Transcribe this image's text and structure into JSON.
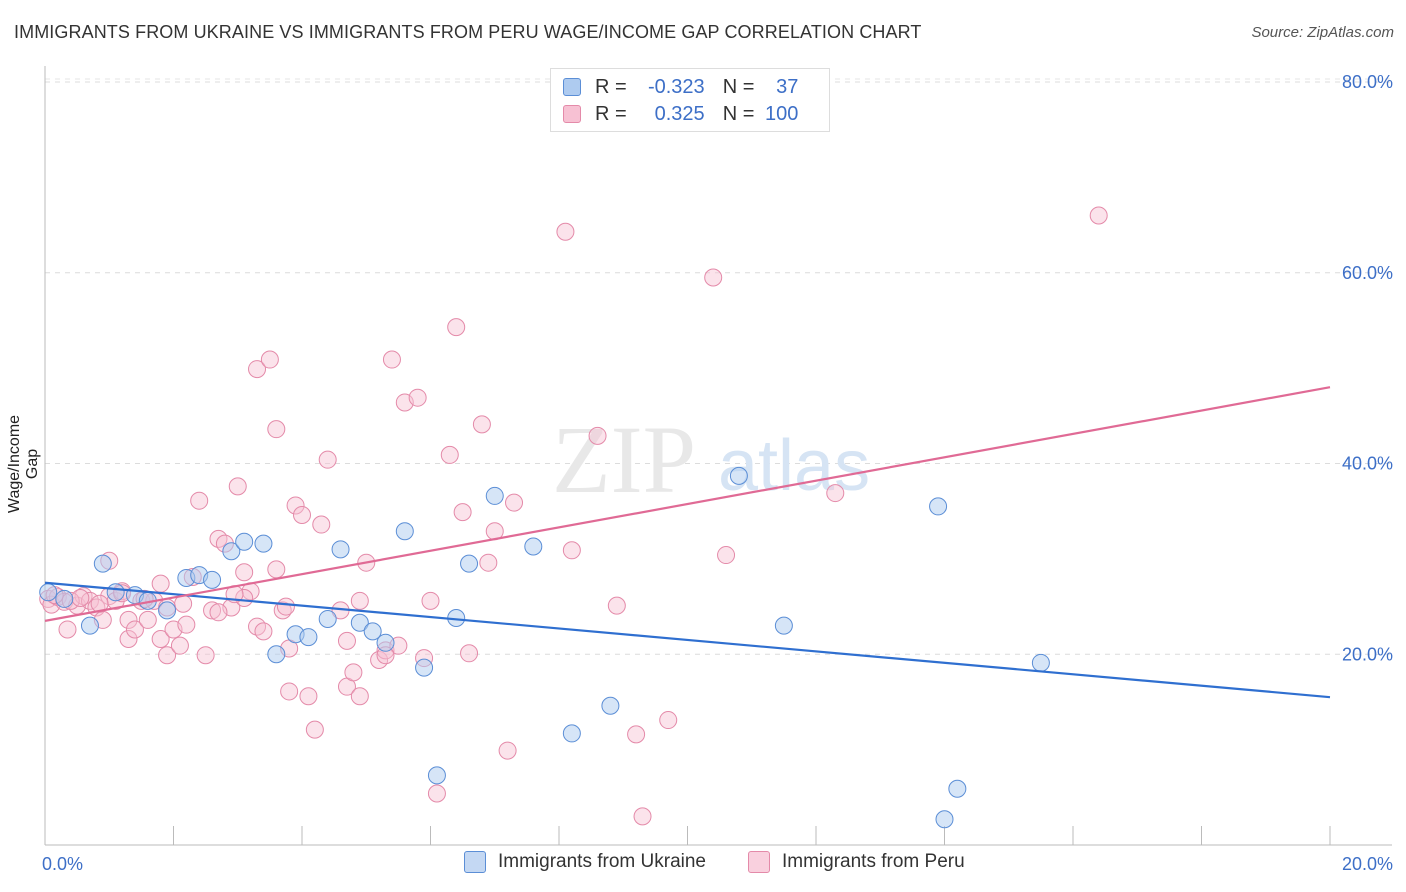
{
  "title": "IMMIGRANTS FROM UKRAINE VS IMMIGRANTS FROM PERU WAGE/INCOME GAP CORRELATION CHART",
  "source": "Source: ZipAtlas.com",
  "watermark": {
    "zip": "ZIP",
    "atlas": "atlas"
  },
  "legend": {
    "r_label": "R =",
    "n_label": "N =",
    "ukraine": {
      "r": "-0.323",
      "n": "37"
    },
    "peru": {
      "r": "0.325",
      "n": "100"
    }
  },
  "colors": {
    "ukraine_fill": "#aecbf0",
    "ukraine_stroke": "#5b8ed6",
    "ukraine_line": "#2f6fd0",
    "peru_fill": "#f7c1d3",
    "peru_stroke": "#e48aa9",
    "peru_line": "#e06a95",
    "tick_label": "#3d6fc7"
  },
  "chart_data": {
    "type": "scatter",
    "title": "IMMIGRANTS FROM UKRAINE VS IMMIGRANTS FROM PERU WAGE/INCOME GAP CORRELATION CHART",
    "xlabel": "",
    "ylabel": "Wage/Income Gap",
    "xlim": [
      0,
      20
    ],
    "ylim": [
      0,
      80
    ],
    "x_tick_labels": [
      "0.0%",
      "20.0%"
    ],
    "y_ticks": [
      20,
      40,
      60,
      80
    ],
    "y_tick_labels": [
      "20.0%",
      "40.0%",
      "60.0%",
      "80.0%"
    ],
    "grid": true,
    "series": [
      {
        "name": "Immigrants from Ukraine",
        "points": [
          [
            0.05,
            26.5
          ],
          [
            0.3,
            25.8
          ],
          [
            0.7,
            23.0
          ],
          [
            0.9,
            29.5
          ],
          [
            1.1,
            26.5
          ],
          [
            1.4,
            26.2
          ],
          [
            1.6,
            25.6
          ],
          [
            1.9,
            24.6
          ],
          [
            2.2,
            28.0
          ],
          [
            2.4,
            28.3
          ],
          [
            2.6,
            27.8
          ],
          [
            2.9,
            30.8
          ],
          [
            3.1,
            31.8
          ],
          [
            3.4,
            31.6
          ],
          [
            3.6,
            20.0
          ],
          [
            3.9,
            22.1
          ],
          [
            4.1,
            21.8
          ],
          [
            4.4,
            23.7
          ],
          [
            4.6,
            31.0
          ],
          [
            4.9,
            23.3
          ],
          [
            5.1,
            22.4
          ],
          [
            5.3,
            21.2
          ],
          [
            5.6,
            32.9
          ],
          [
            5.9,
            18.6
          ],
          [
            6.1,
            7.3
          ],
          [
            6.4,
            23.8
          ],
          [
            6.6,
            29.5
          ],
          [
            7.0,
            36.6
          ],
          [
            7.6,
            31.3
          ],
          [
            8.2,
            11.7
          ],
          [
            8.8,
            14.6
          ],
          [
            10.8,
            38.7
          ],
          [
            11.5,
            23.0
          ],
          [
            13.9,
            35.5
          ],
          [
            14.0,
            2.7
          ],
          [
            14.2,
            5.9
          ],
          [
            15.5,
            19.1
          ]
        ]
      },
      {
        "name": "Immigrants from Peru",
        "points": [
          [
            0.05,
            25.8
          ],
          [
            0.1,
            25.2
          ],
          [
            0.2,
            26.0
          ],
          [
            0.3,
            25.5
          ],
          [
            0.35,
            22.6
          ],
          [
            0.5,
            25.1
          ],
          [
            0.6,
            26.1
          ],
          [
            0.7,
            25.6
          ],
          [
            0.8,
            24.9
          ],
          [
            0.9,
            23.6
          ],
          [
            1.0,
            26.1
          ],
          [
            1.0,
            29.8
          ],
          [
            1.1,
            25.6
          ],
          [
            1.2,
            26.6
          ],
          [
            1.3,
            21.6
          ],
          [
            1.3,
            23.6
          ],
          [
            1.4,
            22.6
          ],
          [
            1.5,
            25.6
          ],
          [
            1.6,
            23.6
          ],
          [
            1.7,
            25.6
          ],
          [
            1.8,
            21.6
          ],
          [
            1.9,
            19.9
          ],
          [
            1.9,
            24.9
          ],
          [
            2.0,
            22.6
          ],
          [
            2.1,
            20.9
          ],
          [
            2.2,
            23.1
          ],
          [
            2.3,
            28.1
          ],
          [
            2.4,
            36.1
          ],
          [
            2.5,
            19.9
          ],
          [
            2.6,
            24.6
          ],
          [
            2.7,
            32.1
          ],
          [
            2.8,
            31.6
          ],
          [
            2.9,
            24.9
          ],
          [
            3.0,
            37.6
          ],
          [
            3.1,
            28.6
          ],
          [
            3.2,
            26.6
          ],
          [
            3.3,
            22.9
          ],
          [
            3.3,
            49.9
          ],
          [
            3.5,
            50.9
          ],
          [
            3.6,
            43.6
          ],
          [
            3.6,
            28.9
          ],
          [
            3.7,
            24.6
          ],
          [
            3.8,
            16.1
          ],
          [
            3.8,
            20.6
          ],
          [
            3.9,
            35.6
          ],
          [
            4.0,
            34.6
          ],
          [
            4.1,
            15.6
          ],
          [
            4.2,
            12.1
          ],
          [
            4.3,
            33.6
          ],
          [
            4.4,
            40.4
          ],
          [
            4.6,
            24.6
          ],
          [
            4.7,
            16.6
          ],
          [
            4.8,
            18.1
          ],
          [
            4.9,
            15.6
          ],
          [
            4.9,
            25.6
          ],
          [
            5.0,
            29.6
          ],
          [
            5.2,
            19.4
          ],
          [
            5.3,
            20.4
          ],
          [
            5.4,
            50.9
          ],
          [
            5.5,
            20.9
          ],
          [
            5.6,
            46.4
          ],
          [
            5.8,
            46.9
          ],
          [
            5.9,
            19.6
          ],
          [
            6.0,
            25.6
          ],
          [
            6.1,
            5.4
          ],
          [
            6.3,
            40.9
          ],
          [
            6.4,
            54.3
          ],
          [
            6.5,
            34.9
          ],
          [
            6.6,
            20.1
          ],
          [
            6.8,
            44.1
          ],
          [
            6.9,
            29.6
          ],
          [
            7.0,
            32.9
          ],
          [
            7.2,
            9.9
          ],
          [
            7.3,
            35.9
          ],
          [
            8.1,
            64.3
          ],
          [
            8.2,
            30.9
          ],
          [
            8.6,
            42.9
          ],
          [
            8.9,
            25.1
          ],
          [
            9.2,
            11.6
          ],
          [
            9.3,
            3.0
          ],
          [
            9.7,
            13.1
          ],
          [
            10.4,
            59.5
          ],
          [
            10.6,
            30.4
          ],
          [
            12.3,
            36.9
          ],
          [
            16.4,
            66.0
          ],
          [
            1.2,
            26.4
          ],
          [
            2.7,
            24.4
          ],
          [
            3.1,
            25.9
          ],
          [
            4.7,
            21.4
          ],
          [
            0.4,
            25.6
          ],
          [
            1.8,
            27.4
          ],
          [
            3.4,
            22.4
          ],
          [
            5.3,
            19.9
          ],
          [
            0.55,
            25.9
          ],
          [
            0.85,
            25.3
          ],
          [
            1.55,
            25.8
          ],
          [
            2.15,
            25.3
          ],
          [
            2.95,
            26.3
          ],
          [
            3.75,
            25.0
          ],
          [
            0.15,
            26.2
          ]
        ]
      }
    ],
    "trendlines": [
      {
        "name": "Immigrants from Ukraine",
        "x": [
          0,
          20
        ],
        "y": [
          27.5,
          15.5
        ]
      },
      {
        "name": "Immigrants from Peru",
        "x": [
          0,
          20
        ],
        "y": [
          23.5,
          48.0
        ]
      }
    ]
  }
}
